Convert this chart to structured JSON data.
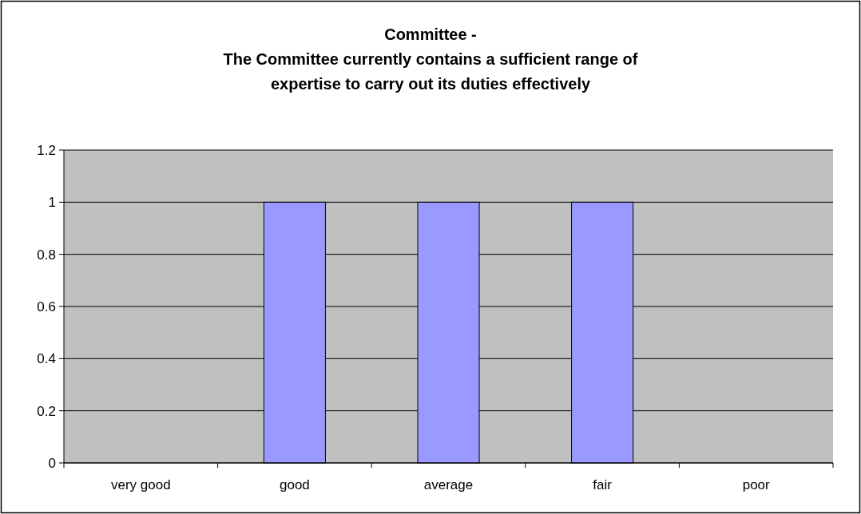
{
  "chart_data": {
    "type": "bar",
    "title": "Committee -\nThe Committee currently contains a sufficient range of\nexpertise to carry out its duties effectively",
    "categories": [
      "very good",
      "good",
      "average",
      "fair",
      "poor"
    ],
    "values": [
      0,
      1,
      1,
      1,
      0
    ],
    "color": "#9999ff",
    "ylim": [
      0,
      1.2
    ],
    "yticks": [
      0,
      0.2,
      0.4,
      0.6,
      0.8,
      1,
      1.2
    ],
    "grid": "y"
  }
}
